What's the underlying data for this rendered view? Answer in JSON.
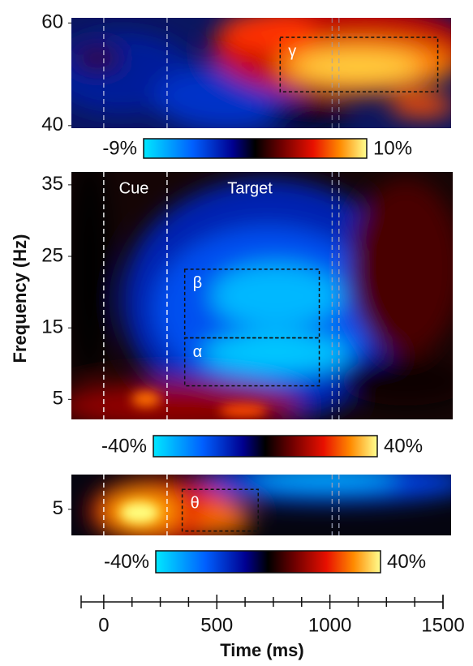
{
  "chart_data": [
    {
      "type": "heatmap",
      "ylim": [
        39.5,
        61
      ],
      "yticks": [
        40,
        60
      ],
      "colorbar": {
        "clim": [
          -9,
          10
        ],
        "ticks": [
          {
            "value": -9,
            "label": "-9%"
          },
          {
            "value": 10,
            "label": "10%"
          }
        ]
      },
      "boxes": [
        {
          "label": "γ",
          "xlim": [
            780,
            1477
          ],
          "ylim": [
            46.6,
            57.2
          ]
        }
      ]
    },
    {
      "type": "heatmap",
      "ylim": [
        2.2,
        36.8
      ],
      "yticks": [
        5,
        15,
        25,
        35
      ],
      "ylabel": "Frequency (Hz)",
      "annotations": [
        "Cue",
        "Target"
      ],
      "colorbar": {
        "clim": [
          -40,
          40
        ],
        "ticks": [
          {
            "value": -40,
            "label": "-40%"
          },
          {
            "value": 40,
            "label": "40%"
          }
        ]
      },
      "boxes": [
        {
          "label": "β",
          "xlim": [
            358,
            953
          ],
          "ylim": [
            13.6,
            23.2
          ]
        },
        {
          "label": "α",
          "xlim": [
            358,
            953
          ],
          "ylim": [
            6.9,
            13.6
          ]
        }
      ]
    },
    {
      "type": "heatmap",
      "ylim": [
        2,
        9
      ],
      "yticks": [
        5
      ],
      "colorbar": {
        "clim": [
          -40,
          40
        ],
        "ticks": [
          {
            "value": -40,
            "label": "-40%"
          },
          {
            "value": 40,
            "label": "40%"
          }
        ]
      },
      "boxes": [
        {
          "label": "θ",
          "xlim": [
            347,
            683
          ],
          "ylim": [
            2.5,
            7.3
          ]
        }
      ],
      "xlim": [
        -100,
        1500
      ],
      "xticks": [
        0,
        500,
        1000,
        1500
      ],
      "xminor": [
        125,
        250,
        375,
        625,
        750,
        875,
        1125,
        1250,
        1375
      ],
      "xlabel": "Time (ms)",
      "vlines": [
        {
          "x": 0,
          "color": "#ffffff"
        },
        {
          "x": 280,
          "color": "#ffffff"
        },
        {
          "x": 1010,
          "color": "#9aa0b8"
        },
        {
          "x": 1040,
          "color": "#9aa0b8"
        }
      ]
    }
  ]
}
